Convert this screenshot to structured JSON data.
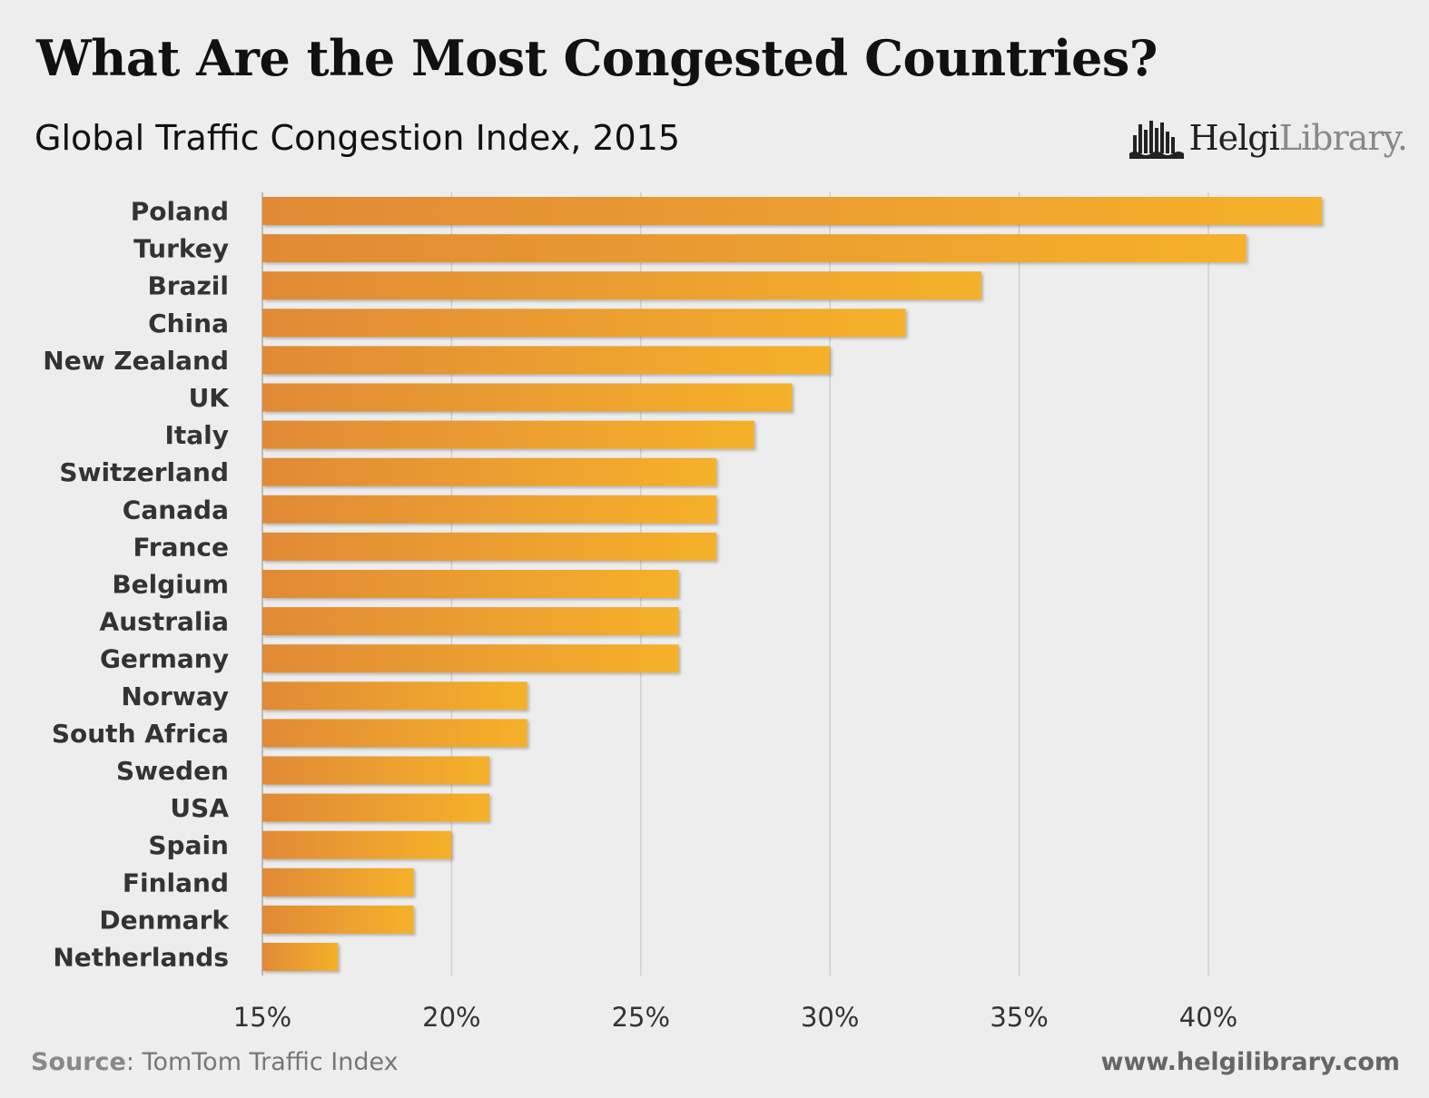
{
  "header": {
    "title": "What Are the Most Congested Countries?",
    "subtitle": "Global Traffic Congestion Index, 2015"
  },
  "logo": {
    "bold": "Helgi",
    "light": "Library.",
    "icon": "city-skyline-icon"
  },
  "footer": {
    "source_label": "Source",
    "source_text": ": TomTom Traffic Index",
    "website": "www.helgilibrary.com"
  },
  "colors": {
    "bar_start": "#e08a36",
    "bar_end": "#f5b12a",
    "grid": "#cfcfcf",
    "axis": "#bbbbbb",
    "text": "#333333"
  },
  "chart_data": {
    "type": "bar",
    "orientation": "horizontal",
    "title": "What Are the Most Congested Countries?",
    "subtitle": "Global Traffic Congestion Index, 2015",
    "categories": [
      "Poland",
      "Turkey",
      "Brazil",
      "China",
      "New Zealand",
      "UK",
      "Italy",
      "Switzerland",
      "Canada",
      "France",
      "Belgium",
      "Australia",
      "Germany",
      "Norway",
      "South Africa",
      "Sweden",
      "USA",
      "Spain",
      "Finland",
      "Denmark",
      "Netherlands"
    ],
    "values": [
      43,
      41,
      34,
      32,
      30,
      29,
      28,
      27,
      27,
      27,
      26,
      26,
      26,
      22,
      22,
      21,
      21,
      20,
      19,
      19,
      17
    ],
    "xlim": [
      15,
      45
    ],
    "xticks": [
      15,
      20,
      25,
      30,
      35,
      40
    ],
    "xtick_labels": [
      "15%",
      "20%",
      "25%",
      "30%",
      "35%",
      "40%"
    ],
    "xlabel": "",
    "ylabel": "",
    "grid": true,
    "legend": "none"
  }
}
